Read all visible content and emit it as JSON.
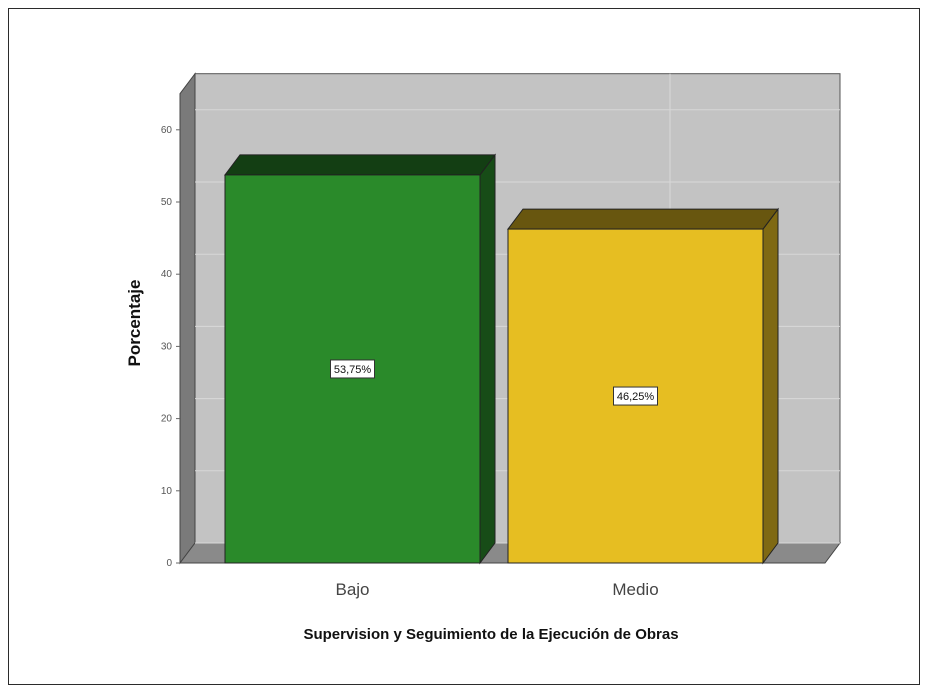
{
  "chart_data": {
    "type": "bar",
    "categories": [
      "Bajo",
      "Medio"
    ],
    "values": [
      53.75,
      46.25
    ],
    "data_labels": [
      "53,75%",
      "46,25%"
    ],
    "colors": [
      "#2a8a2a",
      "#e6be22"
    ],
    "xlabel": "Supervision y Seguimiento de la Ejecución de Obras",
    "ylabel": "Porcentaje",
    "yticks": [
      0,
      10,
      20,
      30,
      40,
      50,
      60
    ],
    "ytick_labels": [
      "0",
      "10",
      "20",
      "30",
      "40",
      "50",
      "60"
    ],
    "ylim": [
      0,
      65
    ],
    "grid": true,
    "style": "3d"
  }
}
